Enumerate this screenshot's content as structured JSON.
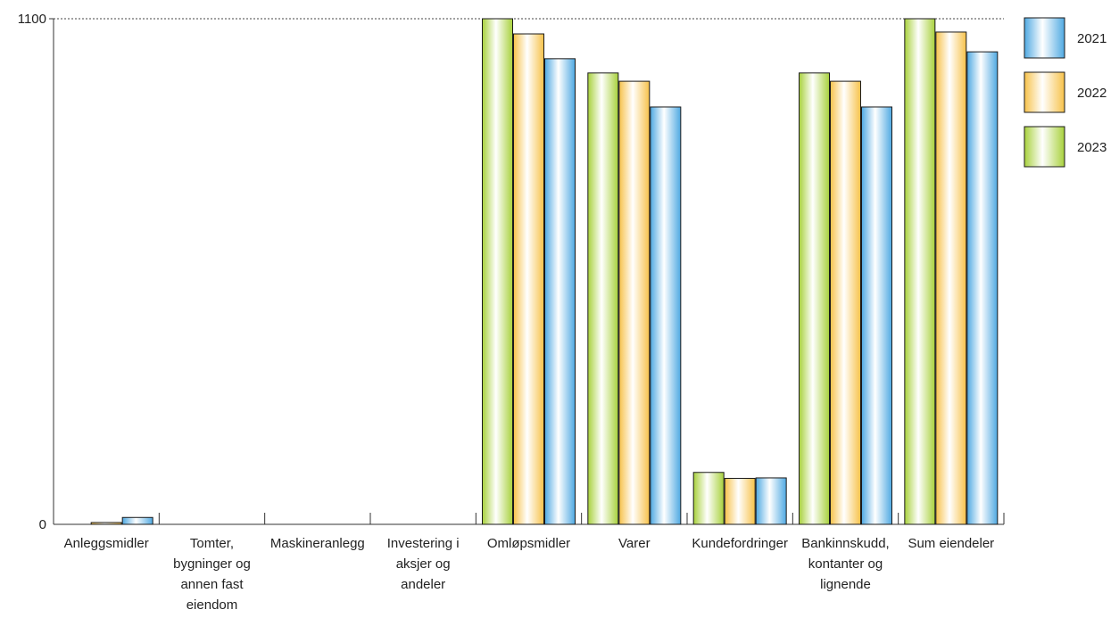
{
  "chart_data": {
    "type": "bar",
    "categories": [
      [
        "Anleggsmidler"
      ],
      [
        "Tomter,",
        "bygninger og",
        "annen fast",
        "eiendom"
      ],
      [
        "Maskineranlegg"
      ],
      [
        "Investering i",
        "aksjer og",
        "andeler"
      ],
      [
        "Omløpsmidler"
      ],
      [
        "Varer"
      ],
      [
        "Kundefordringer"
      ],
      [
        "Bankinnskudd,",
        "kontanter og",
        "lignende"
      ],
      [
        "Sum eiendeler"
      ]
    ],
    "series": [
      {
        "name": "2023",
        "color": "#a8d13c",
        "values": [
          0,
          0,
          0,
          0,
          1100,
          982,
          113,
          982,
          1100
        ]
      },
      {
        "name": "2022",
        "color": "#f7c24a",
        "values": [
          4,
          0,
          0,
          0,
          1067,
          964,
          100,
          964,
          1071
        ]
      },
      {
        "name": "2021",
        "color": "#4fa9e2",
        "values": [
          15,
          0,
          0,
          0,
          1013,
          908,
          101,
          908,
          1028
        ]
      }
    ],
    "y_ticks": [
      "0",
      "1100"
    ],
    "ylim": [
      0,
      1100
    ],
    "legend_position": "right",
    "grid": "dotted line at maximum"
  }
}
